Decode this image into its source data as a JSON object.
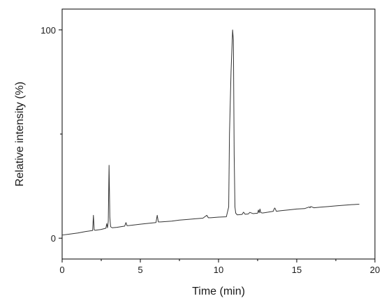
{
  "chart_data": {
    "type": "line",
    "title": "",
    "xlabel": "Time (min)",
    "ylabel": "Relative intensity (%)",
    "xlim": [
      0,
      20
    ],
    "ylim": [
      -10,
      110
    ],
    "x_ticks": [
      0,
      5,
      10,
      15,
      20
    ],
    "y_ticks": [
      0,
      100
    ],
    "grid": false,
    "legend": "none",
    "series": [
      {
        "color": "#333333",
        "x": [
          0.0,
          0.5,
          1.0,
          1.5,
          1.95,
          2.0,
          2.05,
          2.1,
          2.5,
          2.8,
          2.85,
          2.9,
          2.95,
          3.0,
          3.05,
          3.1,
          3.2,
          3.5,
          4.0,
          4.08,
          4.15,
          4.3,
          5.0,
          6.0,
          6.08,
          6.15,
          6.3,
          7.0,
          7.5,
          8.0,
          8.5,
          9.0,
          9.25,
          9.35,
          9.5,
          10.0,
          10.5,
          10.65,
          10.7,
          10.8,
          10.9,
          10.95,
          11.0,
          11.05,
          11.1,
          11.2,
          11.5,
          11.6,
          11.7,
          11.9,
          12.0,
          12.2,
          12.5,
          12.55,
          12.6,
          12.65,
          12.7,
          12.8,
          13.0,
          13.5,
          13.55,
          13.6,
          13.7,
          14.0,
          14.5,
          15.0,
          15.5,
          15.8,
          15.85,
          15.9,
          16.0,
          16.1,
          16.5,
          17.0,
          17.5,
          18.0,
          18.5,
          19.0
        ],
        "y": [
          1.5,
          2.0,
          2.5,
          3.2,
          3.7,
          11.0,
          4.0,
          3.8,
          4.2,
          4.8,
          7.0,
          5.0,
          8.0,
          35.0,
          10.0,
          5.5,
          5.0,
          5.2,
          5.8,
          7.5,
          6.0,
          6.1,
          6.7,
          7.5,
          11.0,
          7.8,
          7.8,
          8.2,
          8.7,
          9.0,
          9.3,
          9.6,
          11.0,
          9.8,
          9.8,
          10.1,
          10.3,
          15.0,
          50.0,
          80.0,
          100.0,
          95.0,
          40.0,
          15.0,
          12.0,
          11.2,
          11.4,
          12.5,
          11.5,
          11.6,
          12.4,
          11.8,
          12.0,
          13.5,
          12.2,
          14.0,
          12.3,
          12.1,
          12.3,
          12.9,
          14.0,
          14.5,
          12.9,
          13.2,
          13.6,
          14.0,
          14.2,
          15.0,
          14.6,
          15.2,
          14.9,
          14.6,
          14.9,
          15.2,
          15.5,
          15.8,
          16.1,
          16.3
        ]
      }
    ]
  }
}
